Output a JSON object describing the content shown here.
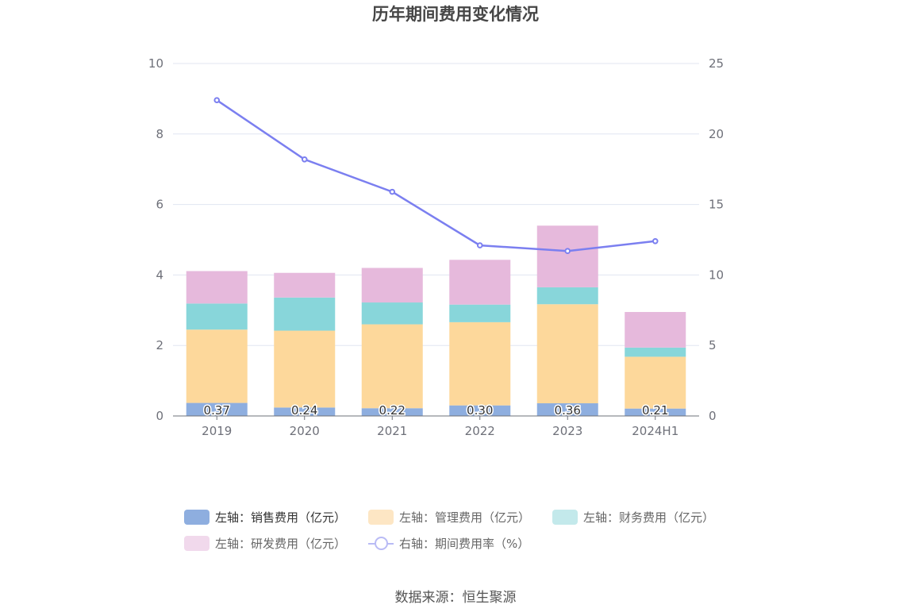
{
  "chart_data": {
    "type": "bar",
    "title": "历年期间费用变化情况",
    "categories": [
      "2019",
      "2020",
      "2021",
      "2022",
      "2023",
      "2024H1"
    ],
    "left_axis": {
      "min": 0,
      "max": 10,
      "ticks": [
        "0",
        "2",
        "4",
        "6",
        "8",
        "10"
      ]
    },
    "right_axis": {
      "min": 0,
      "max": 25,
      "ticks": [
        "0",
        "5",
        "10",
        "15",
        "20",
        "25"
      ]
    },
    "grid": true,
    "legend_position": "bottom",
    "series": [
      {
        "name": "左轴：销售费用（亿元）",
        "type": "bar",
        "axis": "left",
        "color": "#8eaedf",
        "values": [
          0.37,
          0.24,
          0.22,
          0.3,
          0.36,
          0.21
        ],
        "labels": [
          "0.37",
          "0.24",
          "0.22",
          "0.30",
          "0.36",
          "0.21"
        ]
      },
      {
        "name": "左轴：管理费用（亿元）",
        "type": "bar",
        "axis": "left",
        "color": "#fdd89b",
        "values": [
          2.08,
          2.18,
          2.38,
          2.36,
          2.81,
          1.47
        ]
      },
      {
        "name": "左轴：财务费用（亿元）",
        "type": "bar",
        "axis": "left",
        "color": "#88d6da",
        "values": [
          0.74,
          0.94,
          0.62,
          0.5,
          0.48,
          0.26
        ]
      },
      {
        "name": "左轴：研发费用（亿元）",
        "type": "bar",
        "axis": "left",
        "color": "#e6b9dc",
        "values": [
          0.92,
          0.7,
          0.98,
          1.27,
          1.75,
          1.01
        ]
      },
      {
        "name": "右轴：期间费用率（%）",
        "type": "line",
        "axis": "right",
        "color": "#7b7ff0",
        "values": [
          22.4,
          18.2,
          15.9,
          12.1,
          11.7,
          12.4
        ]
      }
    ]
  },
  "source": "数据来源：恒生聚源"
}
